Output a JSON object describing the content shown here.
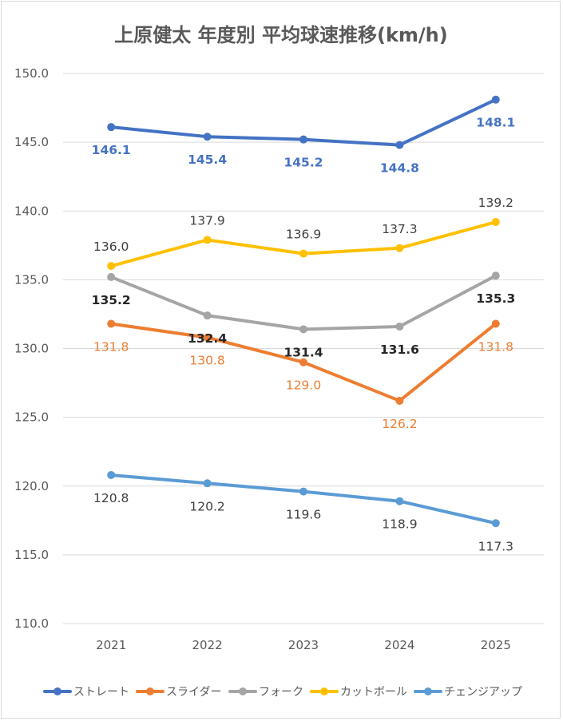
{
  "chart_data": {
    "type": "line",
    "title": "上原健太 年度別 平均球速推移(km/h)",
    "categories": [
      "2021",
      "2022",
      "2023",
      "2024",
      "2025"
    ],
    "ylim": [
      110.0,
      150.0
    ],
    "yticks": [
      "110.0",
      "115.0",
      "120.0",
      "125.0",
      "130.0",
      "135.0",
      "140.0",
      "145.0",
      "150.0"
    ],
    "grid": true,
    "legend_position": "bottom",
    "data_labels": true,
    "series": [
      {
        "name": "ストレート",
        "color": "#4472c4",
        "values": [
          146.1,
          145.4,
          145.2,
          144.8,
          148.1
        ],
        "labels": [
          "146.1",
          "145.4",
          "145.2",
          "144.8",
          "148.1"
        ],
        "label_color": "#4472c4",
        "label_bold": true,
        "label_position": "below"
      },
      {
        "name": "スライダー",
        "color": "#ed7d31",
        "values": [
          131.8,
          130.8,
          129.0,
          126.2,
          131.8
        ],
        "labels": [
          "131.8",
          "130.8",
          "129.0",
          "126.2",
          "131.8"
        ],
        "label_color": "#ed7d31",
        "label_bold": false,
        "label_position": "below"
      },
      {
        "name": "フォーク",
        "color": "#a5a5a5",
        "values": [
          135.2,
          132.4,
          131.4,
          131.6,
          135.3
        ],
        "labels": [
          "135.2",
          "132.4",
          "131.4",
          "131.6",
          "135.3"
        ],
        "label_color": "#262626",
        "label_bold": true,
        "label_position": "below"
      },
      {
        "name": "カットボール",
        "color": "#ffc000",
        "values": [
          136.0,
          137.9,
          136.9,
          137.3,
          139.2
        ],
        "labels": [
          "136.0",
          "137.9",
          "136.9",
          "137.3",
          "139.2"
        ],
        "label_color": "#404040",
        "label_bold": false,
        "label_position": "above"
      },
      {
        "name": "チェンジアップ",
        "color": "#5b9bd5",
        "values": [
          120.8,
          120.2,
          119.6,
          118.9,
          117.3
        ],
        "labels": [
          "120.8",
          "120.2",
          "119.6",
          "118.9",
          "117.3"
        ],
        "label_color": "#404040",
        "label_bold": false,
        "label_position": "below"
      }
    ]
  }
}
